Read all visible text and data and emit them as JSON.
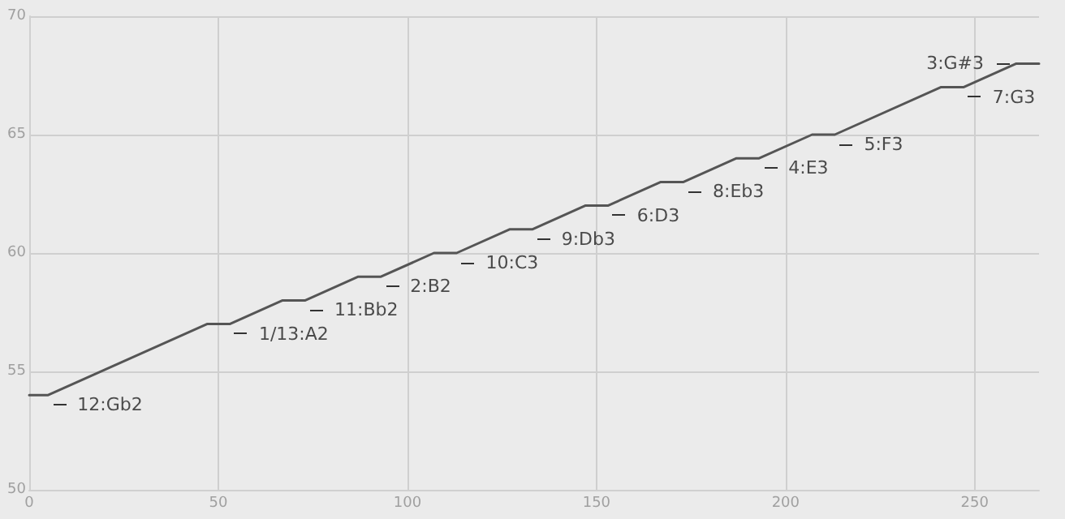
{
  "chart_data": {
    "type": "line",
    "x": [
      0,
      5,
      47,
      53,
      67,
      73,
      87,
      93,
      107,
      113,
      127,
      133,
      147,
      153,
      167,
      173,
      187,
      193,
      207,
      213,
      241,
      247,
      261,
      267
    ],
    "series": [
      {
        "color": "#555555",
        "values": [
          54,
          54,
          57,
          57,
          58,
          58,
          59,
          59,
          60,
          60,
          61,
          61,
          62,
          62,
          63,
          63,
          64,
          64,
          65,
          65,
          67,
          67,
          68,
          68
        ]
      }
    ],
    "xlim": [
      0,
      267
    ],
    "ylim": [
      50,
      70
    ],
    "xticks": [
      0,
      50,
      100,
      150,
      200,
      250
    ],
    "yticks": [
      50,
      55,
      60,
      65,
      70
    ],
    "grid": true,
    "marker": "none",
    "line_style": "solid",
    "annotations": [
      {
        "text": "12:Gb2",
        "x": 5,
        "y": 54
      },
      {
        "text": "1/13:A2",
        "x": 53,
        "y": 57
      },
      {
        "text": "11:Bb2",
        "x": 73,
        "y": 58
      },
      {
        "text": "2:B2",
        "x": 93,
        "y": 59
      },
      {
        "text": "10:C3",
        "x": 113,
        "y": 60
      },
      {
        "text": "9:Db3",
        "x": 133,
        "y": 61
      },
      {
        "text": "6:D3",
        "x": 153,
        "y": 62
      },
      {
        "text": "8:Eb3",
        "x": 173,
        "y": 63
      },
      {
        "text": "4:E3",
        "x": 193,
        "y": 64
      },
      {
        "text": "5:F3",
        "x": 213,
        "y": 65
      },
      {
        "text": "7:G3",
        "x": 247,
        "y": 67
      },
      {
        "text": "3:G#3",
        "x": 261,
        "y": 68
      }
    ]
  }
}
